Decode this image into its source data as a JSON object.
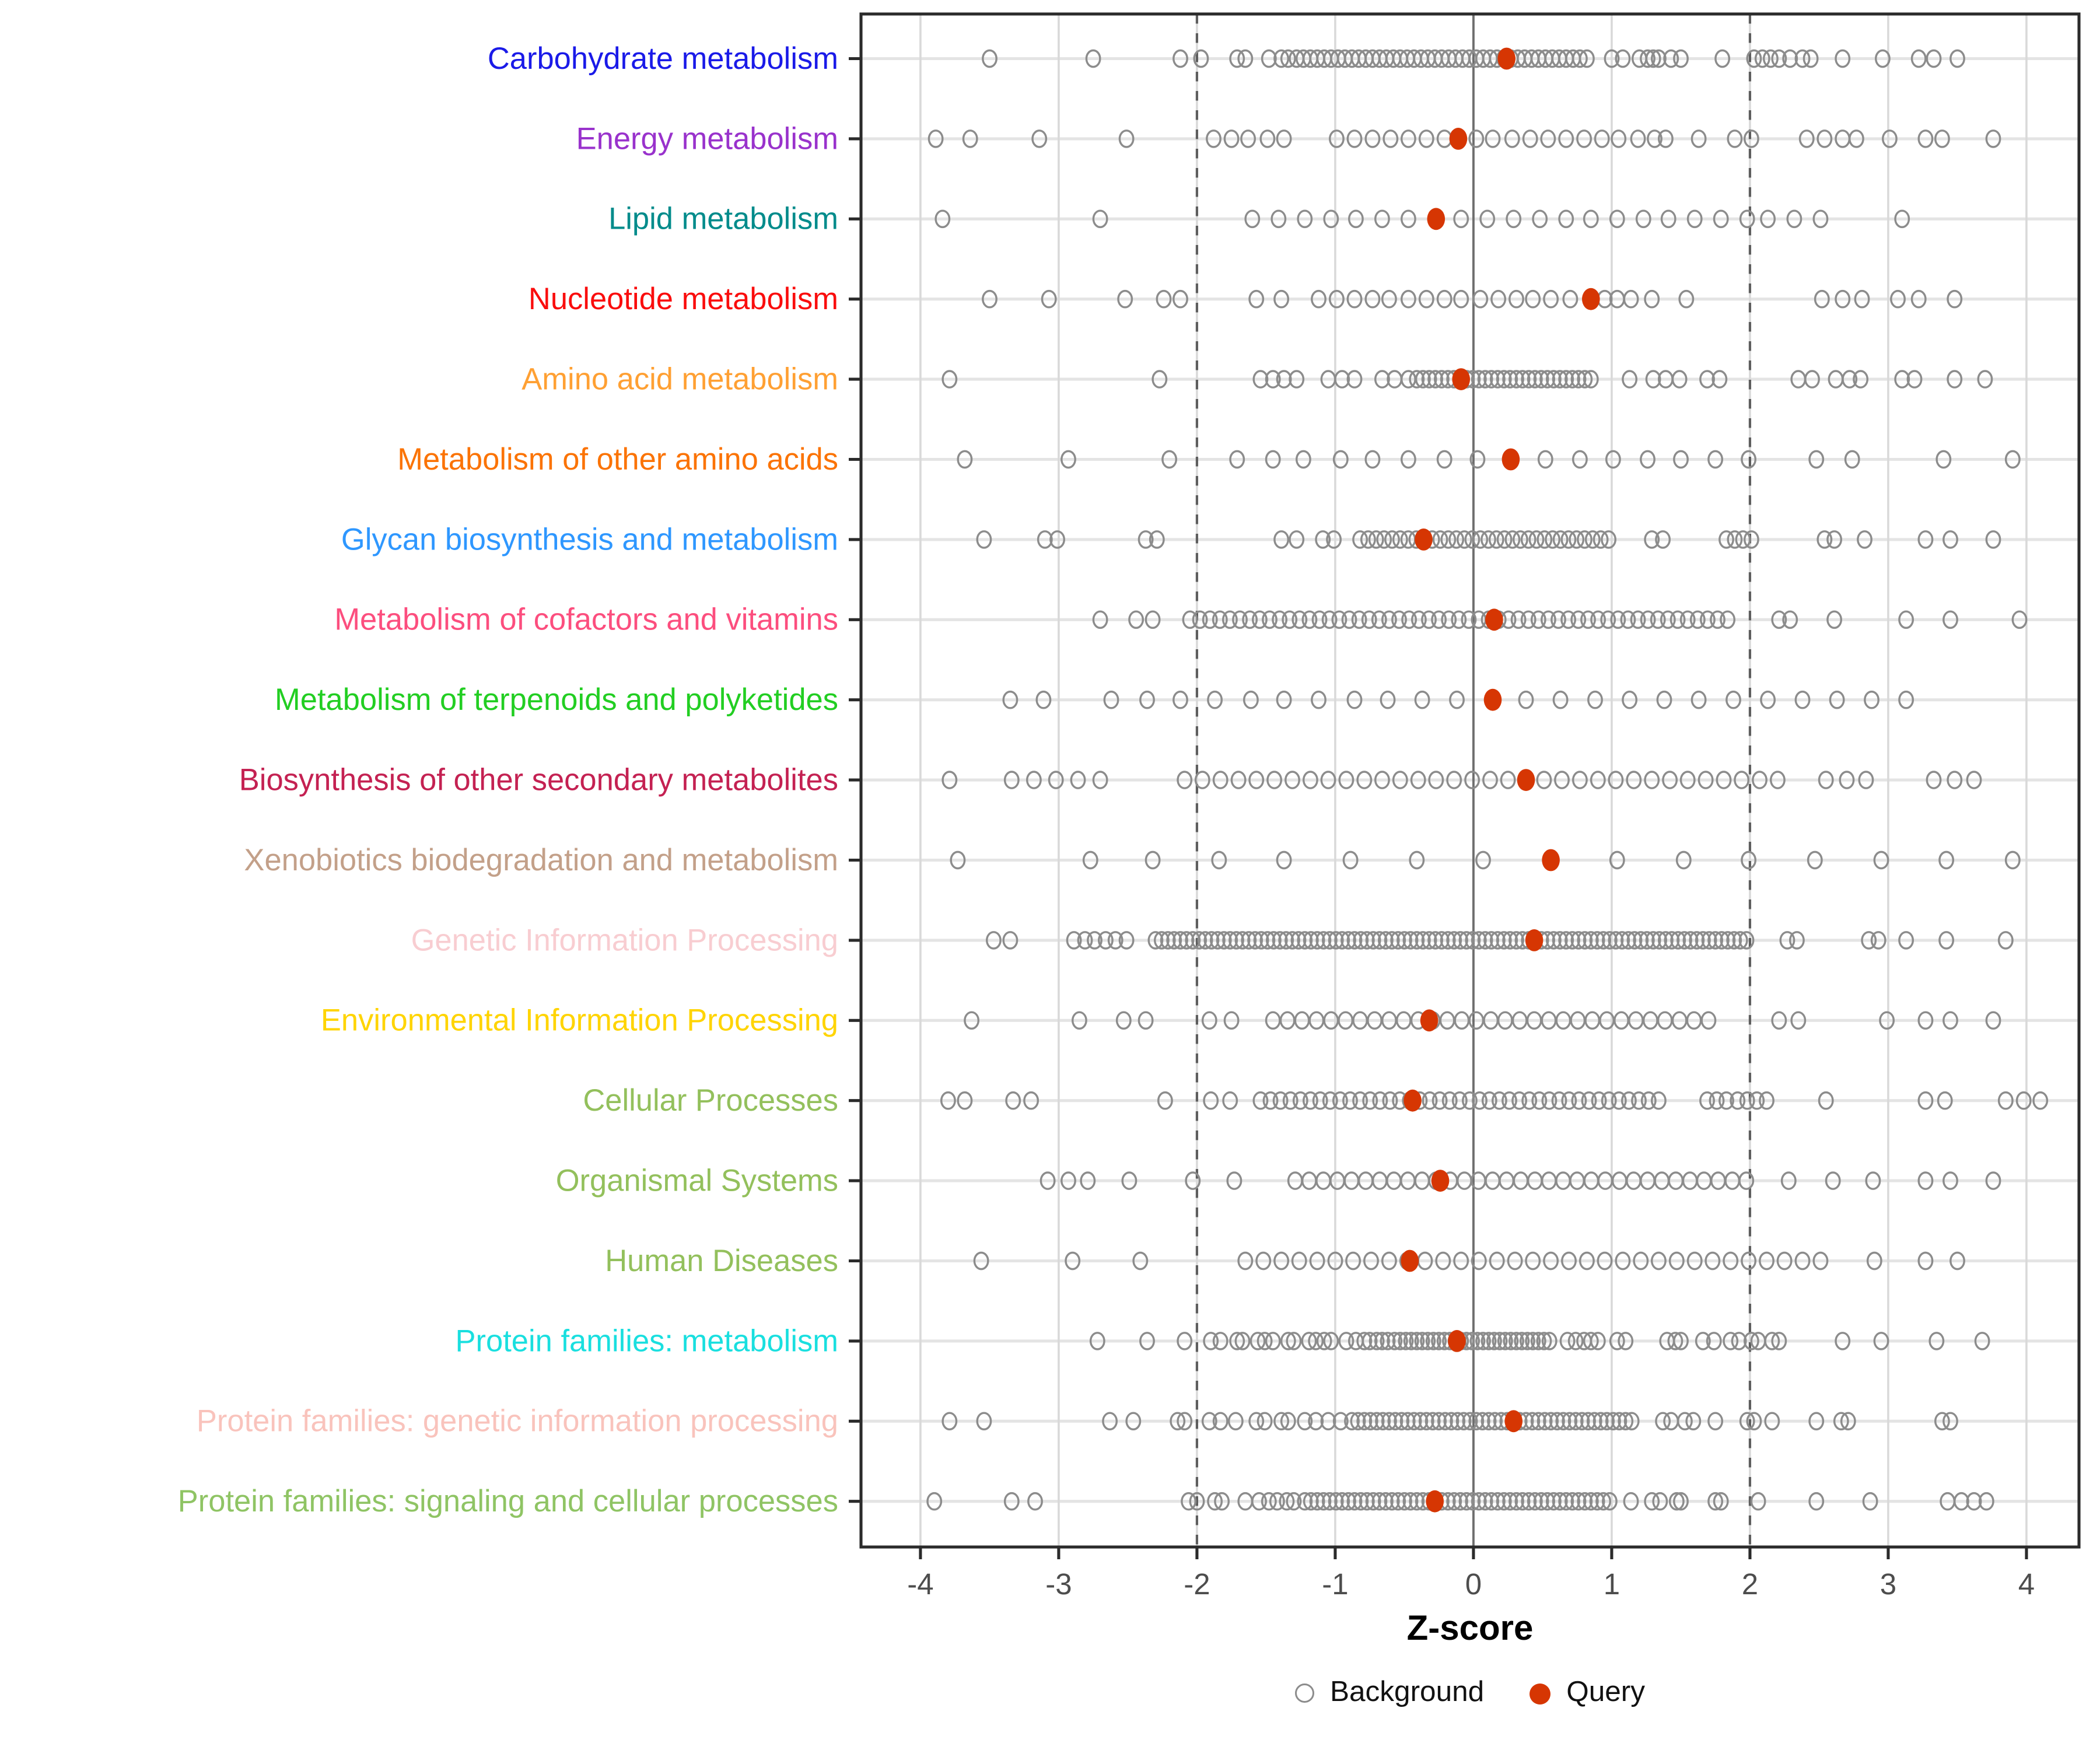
{
  "legend": {
    "background_label": "Background",
    "query_label": "Query"
  },
  "colors": {
    "query_marker": "#D63603",
    "background_marker_stroke": "#8C8C8C",
    "grid_line": "#D9D9D9",
    "row_line": "#E4E4E4",
    "zero_line": "#6E6E6E",
    "threshold_line": "#5E5E5E",
    "axis_text": "#4D4D4D",
    "panel_border": "#2B2B2B"
  },
  "chart_data": {
    "type": "scatter",
    "title": "",
    "xlabel": "Z-score",
    "ylabel": "",
    "x_ticks": [
      -4,
      -3,
      -2,
      -1,
      0,
      1,
      2,
      3,
      4
    ],
    "xlim": [
      -4.43,
      4.38
    ],
    "zero_line": 0,
    "threshold_lines": [
      -2,
      2
    ],
    "grid": true,
    "legend_position": "bottom",
    "series_labels": [
      "Background",
      "Query"
    ],
    "categories": [
      {
        "label": "Carbohydrate metabolism",
        "color": "#1A1AE8",
        "query": 0.24,
        "background": [
          -3.5,
          -2.75,
          -2.12,
          -1.97,
          -1.71,
          -1.65,
          -1.48,
          -1.39,
          -1.34,
          {
            "from": -1.28,
            "to": 0.82,
            "step": 0.05
          },
          1.0,
          1.08,
          1.2,
          1.26,
          1.3,
          1.34,
          1.43,
          1.5,
          1.8,
          2.03,
          2.09,
          2.15,
          2.21,
          2.29,
          2.38,
          2.44,
          2.67,
          2.96,
          3.22,
          3.33,
          3.5
        ]
      },
      {
        "label": "Energy metabolism",
        "color": "#9932CC",
        "query": -0.11,
        "background": [
          -3.89,
          -3.64,
          -3.14,
          -2.51,
          -1.88,
          -1.75,
          -1.63,
          -1.49,
          -1.37,
          -0.99,
          -0.86,
          -0.73,
          -0.6,
          -0.47,
          -0.34,
          -0.21,
          0.02,
          0.14,
          0.28,
          0.41,
          0.54,
          0.67,
          0.8,
          0.93,
          1.05,
          1.19,
          1.31,
          1.39,
          1.63,
          1.89,
          2.01,
          2.41,
          2.54,
          2.67,
          2.77,
          3.01,
          3.27,
          3.39,
          3.76
        ]
      },
      {
        "label": "Lipid metabolism",
        "color": "#008B8B",
        "query": -0.27,
        "background": [
          -3.84,
          -2.7,
          -1.6,
          -1.41,
          -1.22,
          -1.03,
          -0.85,
          -0.66,
          -0.47,
          -0.09,
          0.1,
          0.29,
          0.48,
          0.67,
          0.85,
          1.04,
          1.23,
          1.41,
          1.6,
          1.79,
          1.98,
          2.13,
          2.32,
          2.51,
          3.1
        ]
      },
      {
        "label": "Nucleotide metabolism",
        "color": "#FA0D0D",
        "query": 0.85,
        "background": [
          -3.5,
          -3.07,
          -2.52,
          -2.24,
          -2.12,
          -1.57,
          -1.39,
          -1.12,
          -0.99,
          -0.86,
          -0.73,
          -0.61,
          -0.47,
          -0.34,
          -0.21,
          -0.09,
          0.05,
          0.18,
          0.31,
          0.43,
          0.56,
          0.7,
          0.95,
          1.04,
          1.14,
          1.29,
          1.54,
          2.52,
          2.67,
          2.81,
          3.07,
          3.22,
          3.48
        ]
      },
      {
        "label": "Amino acid metabolism",
        "color": "#FFA033",
        "query": -0.09,
        "background": [
          -3.79,
          -2.27,
          -1.54,
          -1.45,
          -1.37,
          -1.28,
          -1.05,
          -0.95,
          -0.86,
          -0.66,
          -0.57,
          -0.47,
          {
            "from": -0.41,
            "to": 0.85,
            "step": 0.045
          },
          1.13,
          1.3,
          1.39,
          1.49,
          1.69,
          1.78,
          2.35,
          2.45,
          2.62,
          2.72,
          2.8,
          3.1,
          3.19,
          3.48,
          3.7
        ]
      },
      {
        "label": "Metabolism of other amino acids",
        "color": "#FB7304",
        "query": 0.27,
        "background": [
          -3.68,
          -2.93,
          -2.2,
          -1.71,
          -1.45,
          -1.23,
          -0.96,
          -0.73,
          -0.47,
          -0.21,
          0.03,
          0.52,
          0.77,
          1.01,
          1.26,
          1.5,
          1.75,
          1.99,
          2.48,
          2.74,
          3.4,
          3.9
        ]
      },
      {
        "label": "Glycan biosynthesis and metabolism",
        "color": "#2E97FF",
        "query": -0.36,
        "background": [
          -3.54,
          -3.1,
          -3.01,
          -2.37,
          -2.29,
          -1.39,
          -1.28,
          -1.09,
          -1.01,
          {
            "from": -0.82,
            "to": 0.99,
            "step": 0.058
          },
          1.29,
          1.37,
          1.83,
          1.89,
          1.95,
          2.01,
          2.54,
          2.61,
          2.83,
          3.27,
          3.45,
          3.76
        ]
      },
      {
        "label": "Metabolism of cofactors and vitamins",
        "color": "#FC4E7E",
        "query": 0.15,
        "background": [
          -2.7,
          -2.44,
          -2.32,
          {
            "from": -2.05,
            "to": 1.86,
            "step": 0.072
          },
          2.21,
          2.29,
          2.61,
          3.13,
          3.45,
          3.95
        ]
      },
      {
        "label": "Metabolism of terpenoids and polyketides",
        "color": "#22CE22",
        "query": 0.14,
        "background": [
          -3.35,
          -3.11,
          -2.62,
          -2.36,
          -2.12,
          -1.87,
          -1.61,
          -1.37,
          -1.12,
          -0.86,
          -0.62,
          -0.37,
          -0.12,
          0.38,
          0.63,
          0.88,
          1.13,
          1.38,
          1.63,
          1.88,
          2.13,
          2.38,
          2.63,
          2.88,
          3.13
        ]
      },
      {
        "label": "Biosynthesis of other secondary metabolites",
        "color": "#C42152",
        "query": 0.38,
        "background": [
          -3.79,
          -3.34,
          -3.18,
          -3.02,
          -2.86,
          -2.7,
          {
            "from": -2.09,
            "to": 2.2,
            "step": 0.13
          },
          2.55,
          2.7,
          2.84,
          3.33,
          3.48,
          3.62
        ]
      },
      {
        "label": "Xenobiotics biodegradation and metabolism",
        "color": "#C3A089",
        "query": 0.56,
        "background": [
          -3.73,
          -2.77,
          -2.32,
          -1.84,
          -1.37,
          -0.89,
          -0.41,
          0.07,
          1.04,
          1.52,
          1.99,
          2.47,
          2.95,
          3.42,
          3.9
        ]
      },
      {
        "label": "Genetic Information Processing",
        "color": "#F8CDD1",
        "query": 0.44,
        "background": [
          -3.47,
          -3.35,
          -2.89,
          -2.81,
          -2.74,
          -2.66,
          -2.59,
          -2.51,
          {
            "from": -2.3,
            "to": 2.0,
            "step": 0.045
          },
          2.27,
          2.34,
          2.86,
          2.93,
          3.13,
          3.42,
          3.85
        ]
      },
      {
        "label": "Environmental Information Processing",
        "color": "#FFD400",
        "query": -0.32,
        "background": [
          -3.63,
          -2.85,
          -2.53,
          -2.37,
          -1.91,
          -1.75,
          {
            "from": -1.45,
            "to": 1.72,
            "step": 0.105
          },
          2.21,
          2.35,
          2.99,
          3.27,
          3.45,
          3.76
        ]
      },
      {
        "label": "Cellular Processes",
        "color": "#93C05C",
        "query": -0.44,
        "background": [
          -3.8,
          -3.68,
          -3.33,
          -3.2,
          -2.23,
          -1.9,
          -1.76,
          {
            "from": -1.54,
            "to": 1.35,
            "step": 0.072
          },
          1.69,
          1.76,
          1.83,
          1.91,
          1.98,
          2.05,
          2.12,
          2.55,
          3.27,
          3.41,
          3.85,
          3.98,
          4.1
        ]
      },
      {
        "label": "Organismal Systems",
        "color": "#93C05C",
        "query": -0.24,
        "background": [
          -3.08,
          -2.93,
          -2.79,
          -2.49,
          -2.03,
          -1.73,
          {
            "from": -1.29,
            "to": 1.98,
            "step": 0.102
          },
          2.28,
          2.6,
          2.89,
          3.27,
          3.45,
          3.76
        ]
      },
      {
        "label": "Human Diseases",
        "color": "#93C05C",
        "query": -0.46,
        "background": [
          -3.56,
          -2.9,
          -2.41,
          {
            "from": -1.65,
            "to": 2.52,
            "step": 0.13
          },
          2.9,
          3.27,
          3.5
        ]
      },
      {
        "label": "Protein families: metabolism",
        "color": "#19DFDF",
        "query": -0.12,
        "background": [
          -2.72,
          -2.36,
          -2.09,
          -1.9,
          -1.83,
          -1.71,
          -1.67,
          -1.56,
          -1.51,
          -1.45,
          -1.34,
          -1.3,
          -1.19,
          -1.14,
          -1.08,
          -1.03,
          -0.92,
          -0.85,
          -0.79,
          -0.75,
          -0.7,
          -0.66,
          -0.62,
          {
            "from": -0.57,
            "to": 0.58,
            "step": 0.04
          },
          0.68,
          0.74,
          0.8,
          0.85,
          0.9,
          1.04,
          1.1,
          1.4,
          1.46,
          1.5,
          1.66,
          1.74,
          1.86,
          1.92,
          2.01,
          2.06,
          2.16,
          2.21,
          2.67,
          2.95,
          3.35,
          3.68
        ]
      },
      {
        "label": "Protein families: genetic information processing",
        "color": "#F9C3BC",
        "query": 0.29,
        "background": [
          -3.79,
          -3.54,
          -2.63,
          -2.46,
          -2.14,
          -2.09,
          -1.91,
          -1.83,
          -1.72,
          -1.57,
          -1.51,
          -1.39,
          -1.34,
          -1.22,
          -1.14,
          -1.05,
          -0.96,
          {
            "from": -0.88,
            "to": 1.17,
            "step": 0.045
          },
          1.37,
          1.43,
          1.53,
          1.59,
          1.75,
          1.98,
          2.03,
          2.16,
          2.48,
          2.66,
          2.71,
          3.39,
          3.45
        ]
      },
      {
        "label": "Protein families: signaling and cellular processes",
        "color": "#8FC464",
        "query": -0.28,
        "background": [
          -3.9,
          -3.34,
          -3.17,
          -2.06,
          -2.0,
          -1.87,
          -1.82,
          -1.65,
          -1.55,
          -1.48,
          -1.42,
          -1.35,
          -1.3,
          {
            "from": -1.22,
            "to": 1.0,
            "step": 0.045
          },
          1.14,
          1.29,
          1.35,
          1.47,
          1.5,
          1.75,
          1.79,
          2.06,
          2.48,
          2.87,
          3.43,
          3.53,
          3.62,
          3.71
        ]
      }
    ]
  }
}
